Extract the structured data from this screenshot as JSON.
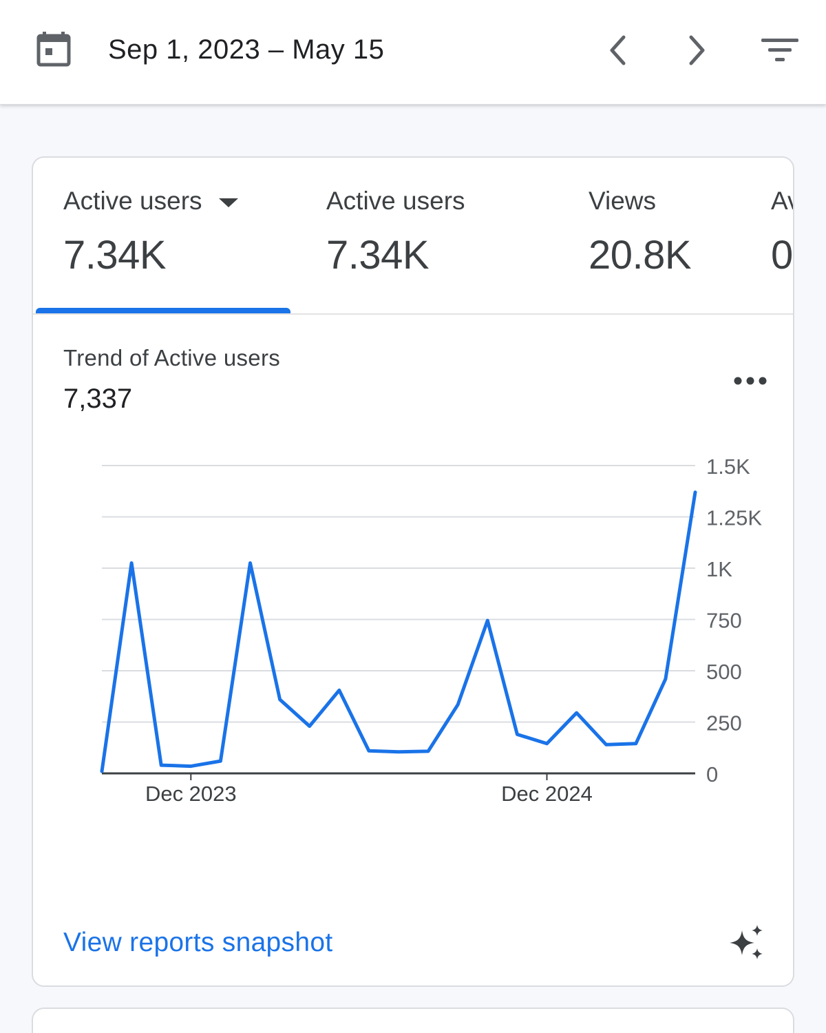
{
  "header": {
    "date_range": "Sep 1, 2023 – May 15",
    "icons": [
      "calendar-icon",
      "chevron-left-icon",
      "chevron-right-icon",
      "filter-icon"
    ]
  },
  "metrics": [
    {
      "label": "Active users",
      "value": "7.34K",
      "selected": true,
      "has_dropdown": true
    },
    {
      "label": "Active users",
      "value": "7.34K"
    },
    {
      "label": "Views",
      "value": "20.8K"
    },
    {
      "label": "Av",
      "value": "0"
    }
  ],
  "trend": {
    "title": "Trend of Active users",
    "value": "7,337",
    "link": "View reports snapshot"
  },
  "colors": {
    "accent": "#1a73e8",
    "line": "#1a73e8",
    "grid": "#dadce0"
  },
  "chart_data": {
    "type": "line",
    "x": [
      "2023-09",
      "2023-10",
      "2023-11",
      "2023-12",
      "2024-01",
      "2024-02",
      "2024-03",
      "2024-04",
      "2024-05",
      "2024-06",
      "2024-07",
      "2024-08",
      "2024-09",
      "2024-10",
      "2024-11",
      "2024-12",
      "2025-01",
      "2025-02",
      "2025-03",
      "2025-04",
      "2025-05"
    ],
    "series": [
      {
        "values": [
          10,
          1025,
          40,
          35,
          60,
          1025,
          360,
          230,
          405,
          110,
          105,
          108,
          335,
          745,
          190,
          145,
          295,
          140,
          145,
          460,
          1370
        ]
      }
    ],
    "x_tick_labels": [
      {
        "x": "2023-12",
        "label": "Dec 2023"
      },
      {
        "x": "2024-12",
        "label": "Dec 2024"
      }
    ],
    "y_ticks": [
      "0",
      "250",
      "500",
      "750",
      "1K",
      "1.25K",
      "1.5K"
    ],
    "y_tick_values": [
      0,
      250,
      500,
      750,
      1000,
      1250,
      1500
    ],
    "ylim": [
      0,
      1500
    ],
    "grid": true,
    "axis_position": "right"
  }
}
